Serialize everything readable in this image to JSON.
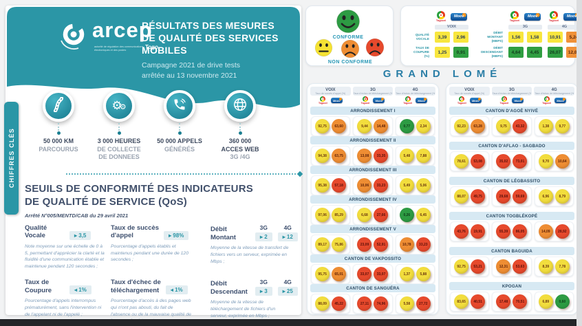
{
  "page": {
    "title_lines": "RÉSULTATS DES MESURES\nDE QUALITÉ DES SERVICES\nMOBILES",
    "subtitle": "Campagne 2021 de drive tests\narrêtée au 13 novembre 2021",
    "side_tab": "CHIFFRES CLÉS"
  },
  "logo": {
    "name": "arcep",
    "country": "Togo",
    "slogan": "autorité de régulation des communications électroniques et des postes"
  },
  "key_figures": [
    {
      "icon": "road-icon",
      "bold": "50 000 KM",
      "rest": "PARCOURUS"
    },
    {
      "icon": "gears-icon",
      "bold": "3 000 HEURES",
      "rest": "DE COLLECTE\nDE DONNEES"
    },
    {
      "icon": "phone-icon",
      "bold": "50 000 APPELS",
      "rest": "GÉNÉRÉS"
    },
    {
      "icon": "globe-icon",
      "bold": "360 000\nACCES WEB",
      "rest": "3G /4G"
    }
  ],
  "qos": {
    "heading": "SEUILS DE CONFORMITÉ DES INDICATEURS\nDE QUALITÉ DE SERVICE (QoS)",
    "decree": "Arrêté N°005/MENTD/CAB du 29 avril 2021",
    "indicators": [
      {
        "title": "Qualité\nVocale",
        "badges": [
          {
            "op": "ge",
            "value": "3,5"
          }
        ],
        "desc": "Note moyenne sur une échelle de 0 à 5, permettant d'apprécier la clarté et la fluidité d'une communication établie et maintenue pendant 120 secondes ;"
      },
      {
        "title": "Taux de succès\nd'appel",
        "badges": [
          {
            "op": "ge",
            "value": "98%"
          }
        ],
        "desc": "Pourcentage d'appels établis et maintenus pendant une durée de 120 secondes ;"
      },
      {
        "title": "Débit\nMontant",
        "cols": [
          "3G",
          "4G"
        ],
        "badges": [
          {
            "op": "ge",
            "value": "2"
          },
          {
            "op": "ge",
            "value": "12"
          }
        ],
        "desc": "Moyenne de la vitesse de transfert de fichiers vers un serveur, exprimée en Mbps ;"
      },
      {
        "title": "Taux de\nCoupure",
        "badges": [
          {
            "op": "le",
            "value": "1%"
          }
        ],
        "desc": "Pourcentage d'appels interrompus prématurément, sans l'intervention ni de l'appelant ni de l'appelé ;"
      },
      {
        "title": "Taux d'échec de\ntéléchargement",
        "badges": [
          {
            "op": "le",
            "value": "1%"
          }
        ],
        "desc": "Pourcentage d'accès à des pages web qui n'ont pas abouti, du fait de l'absence ou de la mauvaise qualité de la connexion internet"
      },
      {
        "title": "Débit\nDescendant",
        "cols": [
          "3G",
          "4G"
        ],
        "badges": [
          {
            "op": "ge",
            "value": "3"
          },
          {
            "op": "ge",
            "value": "25"
          }
        ],
        "desc": "Moyenne de la vitesse de téléchargement de fichiers d'un serveur, exprimée en Mbps ;"
      }
    ]
  },
  "legend": {
    "conforme": "CONFORME",
    "non_conforme": "NON CONFORME"
  },
  "operators": [
    "Togocel",
    "Moov"
  ],
  "national": {
    "voice": {
      "group": "VOIX",
      "rows": [
        {
          "label": "QUALITÉ\nVOCALE",
          "cells": [
            {
              "v": "3,39",
              "c": "yellow"
            },
            {
              "v": "2,96",
              "c": "yellow"
            }
          ]
        },
        {
          "label": "TAUX DE\nCOUPURE\n(%)",
          "cells": [
            {
              "v": "1,25",
              "c": "yellow"
            },
            {
              "v": "0,91",
              "c": "green"
            }
          ]
        }
      ]
    },
    "data": {
      "groups": [
        "3G",
        "4G"
      ],
      "rows": [
        {
          "label": "DÉBIT\nMONTANT\n(MBPS)",
          "cells": [
            {
              "v": "1,56",
              "c": "yellow"
            },
            {
              "v": "1,58",
              "c": "yellow"
            },
            {
              "v": "10,91",
              "c": "yellow"
            },
            {
              "v": "5,24",
              "c": "orange"
            }
          ]
        },
        {
          "label": "DÉBIT\nDESCENDANT\n(MBPS)",
          "cells": [
            {
              "v": "4,64",
              "c": "green"
            },
            {
              "v": "4,45",
              "c": "green"
            },
            {
              "v": "26,07",
              "c": "green"
            },
            {
              "v": "12,09",
              "c": "orange"
            }
          ]
        }
      ]
    }
  },
  "grand_lome": {
    "title": "GRAND LOMÉ",
    "columns": [
      {
        "name": "VOIX",
        "sub": "Taux de succès d'appel (%)"
      },
      {
        "name": "3G",
        "sub": "Taux d'échec de téléchargement (%)"
      },
      {
        "name": "4G",
        "sub": "Taux d'échec de téléchargement (%)"
      }
    ],
    "panels": [
      {
        "sections": [
          {
            "name": "ARRONDISSEMENT I",
            "voix": [
              [
                "92,75",
                "yellow"
              ],
              [
                "63,60",
                "orange"
              ]
            ],
            "g3": [
              [
                "9,44",
                "yellow"
              ],
              [
                "14,48",
                "orange"
              ]
            ],
            "g4": [
              [
                "0,77",
                "green"
              ],
              [
                "2,34",
                "yellow"
              ]
            ]
          },
          {
            "name": "ARRONDISSEMENT II",
            "voix": [
              [
                "94,38",
                "yellow"
              ],
              [
                "63,75",
                "orange"
              ]
            ],
            "g3": [
              [
                "13,08",
                "orange"
              ],
              [
                "33,35",
                "red"
              ]
            ],
            "g4": [
              [
                "5,48",
                "yellow"
              ],
              [
                "7,88",
                "yellow"
              ]
            ]
          },
          {
            "name": "ARRONDISSEMENT III",
            "voix": [
              [
                "95,38",
                "yellow"
              ],
              [
                "57,18",
                "red"
              ]
            ],
            "g3": [
              [
                "10,06",
                "orange"
              ],
              [
                "33,23",
                "red"
              ]
            ],
            "g4": [
              [
                "5,49",
                "yellow"
              ],
              [
                "5,06",
                "yellow"
              ]
            ]
          },
          {
            "name": "ARRONDISSEMENT IV",
            "voix": [
              [
                "97,06",
                "yellow"
              ],
              [
                "85,29",
                "yellow"
              ]
            ],
            "g3": [
              [
                "6,68",
                "yellow"
              ],
              [
                "27,66",
                "red"
              ]
            ],
            "g4": [
              [
                "0,26",
                "green"
              ],
              [
                "6,45",
                "yellow"
              ]
            ]
          },
          {
            "name": "ARRONDISSEMENT V",
            "voix": [
              [
                "89,17",
                "yellow"
              ],
              [
                "75,86",
                "yellow"
              ]
            ],
            "g3": [
              [
                "23,09",
                "red"
              ],
              [
                "52,91",
                "red"
              ]
            ],
            "g4": [
              [
                "10,78",
                "orange"
              ],
              [
                "33,23",
                "red"
              ]
            ]
          },
          {
            "name": "CANTON DE VAKPOSSITO",
            "voix": [
              [
                "95,75",
                "yellow"
              ],
              [
                "65,01",
                "orange"
              ]
            ],
            "g3": [
              [
                "33,07",
                "red"
              ],
              [
                "33,07",
                "red"
              ]
            ],
            "g4": [
              [
                "1,37",
                "yellow"
              ],
              [
                "5,88",
                "yellow"
              ]
            ]
          },
          {
            "name": "CANTON DE SANGUÉRA",
            "voix": [
              [
                "88,09",
                "yellow"
              ],
              [
                "45,22",
                "red"
              ]
            ],
            "g3": [
              [
                "27,11",
                "red"
              ],
              [
                "74,96",
                "red"
              ]
            ],
            "g4": [
              [
                "5,58",
                "yellow"
              ],
              [
                "27,72",
                "red"
              ]
            ]
          }
        ]
      },
      {
        "sections": [
          {
            "name": "CANTON D'AGOÈ NYIVÉ",
            "voix": [
              [
                "92,23",
                "yellow"
              ],
              [
                "63,28",
                "orange"
              ]
            ],
            "g3": [
              [
                "9,75",
                "yellow"
              ],
              [
                "43,32",
                "red"
              ]
            ],
            "g4": [
              [
                "1,38",
                "yellow"
              ],
              [
                "9,77",
                "yellow"
              ]
            ]
          },
          {
            "name": "CANTON D'AFLAO - SAGBADO",
            "voix": [
              [
                "78,61",
                "yellow"
              ],
              [
                "53,08",
                "red"
              ]
            ],
            "g3": [
              [
                "35,02",
                "red"
              ],
              [
                "73,01",
                "red"
              ]
            ],
            "g4": [
              [
                "9,70",
                "yellow"
              ],
              [
                "10,64",
                "orange"
              ]
            ]
          },
          {
            "name": "CANTON DE LÉGBASSITO",
            "voix": [
              [
                "88,07",
                "yellow"
              ],
              [
                "49,75",
                "red"
              ]
            ],
            "g3": [
              [
                "29,68",
                "red"
              ],
              [
                "59,69",
                "red"
              ]
            ],
            "g4": [
              [
                "6,96",
                "yellow"
              ],
              [
                "8,79",
                "yellow"
              ]
            ]
          },
          {
            "name": "CANTON TOGBLÉKOPÉ",
            "voix": [
              [
                "43,76",
                "red"
              ],
              [
                "19,91",
                "red"
              ]
            ],
            "g3": [
              [
                "55,39",
                "red"
              ],
              [
                "86,05",
                "red"
              ]
            ],
            "g4": [
              [
                "14,09",
                "orange"
              ],
              [
                "28,92",
                "red"
              ]
            ]
          },
          {
            "name": "CANTON BAGUIDA",
            "voix": [
              [
                "92,75",
                "yellow"
              ],
              [
                "53,21",
                "red"
              ]
            ],
            "g3": [
              [
                "12,31",
                "orange"
              ],
              [
                "53,63",
                "red"
              ]
            ],
            "g4": [
              [
                "8,39",
                "yellow"
              ],
              [
                "7,78",
                "yellow"
              ]
            ]
          },
          {
            "name": "KPOGAN",
            "voix": [
              [
                "83,65",
                "yellow"
              ],
              [
                "40,51",
                "red"
              ]
            ],
            "g3": [
              [
                "17,48",
                "red"
              ],
              [
                "70,51",
                "red"
              ]
            ],
            "g4": [
              [
                "6,89",
                "yellow"
              ],
              [
                "0,60",
                "green"
              ]
            ]
          }
        ]
      }
    ]
  },
  "colors": {
    "teal": "#2b96a6",
    "yellow": "#f2dd3d",
    "orange": "#ee8d33",
    "red": "#e6492c",
    "green": "#2d9b43"
  }
}
